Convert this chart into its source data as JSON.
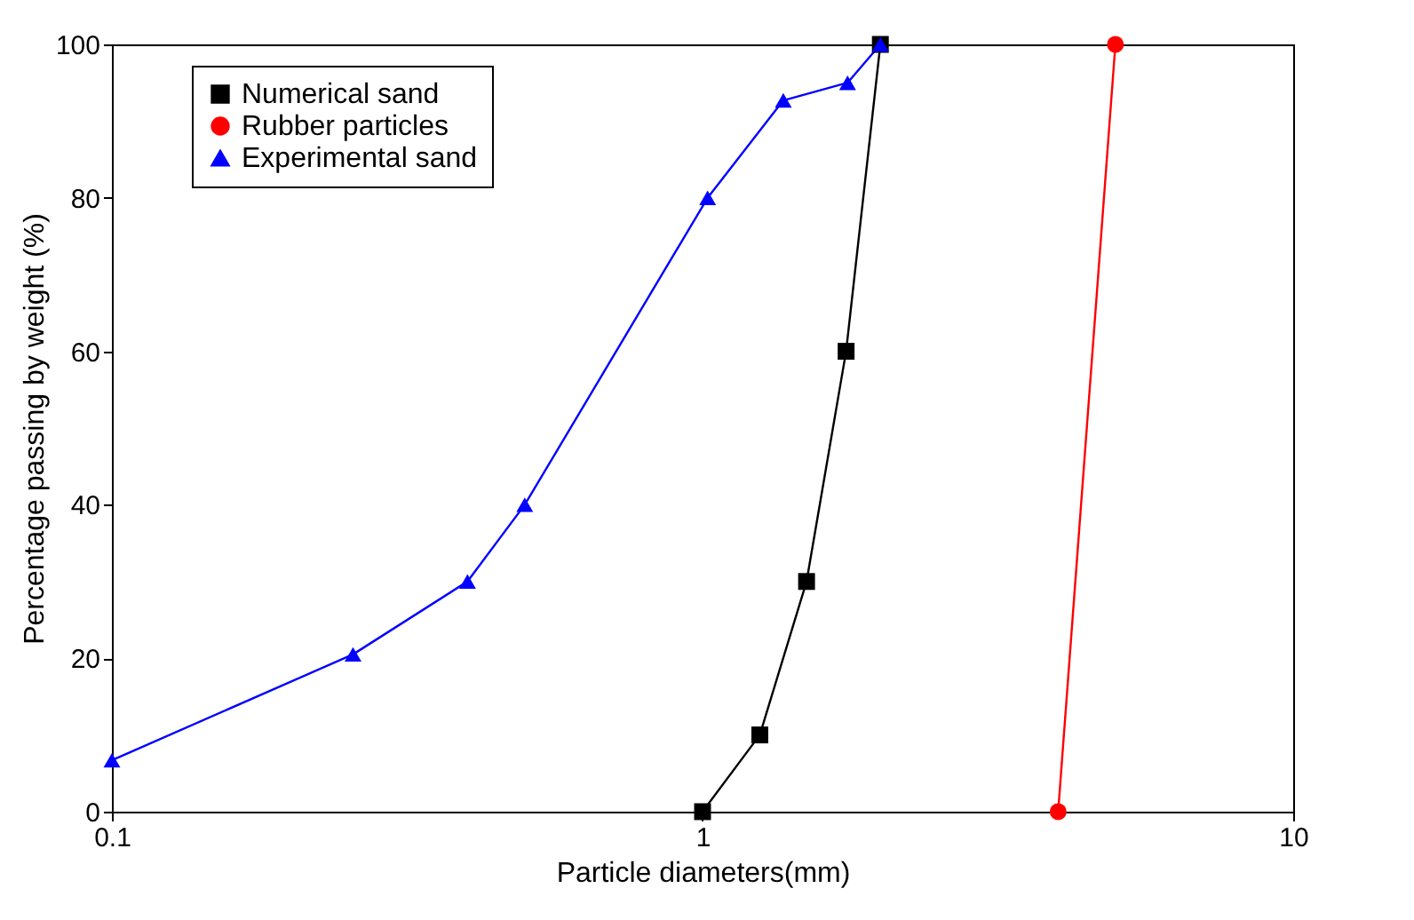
{
  "chart_data": {
    "type": "line",
    "xlabel": "Particle diameters(mm)",
    "ylabel": "Percentage passing by weight (%)",
    "log": "x",
    "xlim": [
      0.1,
      10
    ],
    "xticks": [
      0.1,
      1,
      10
    ],
    "ylim": [
      0,
      100
    ],
    "yticks": [
      0,
      20,
      40,
      60,
      80,
      100
    ],
    "grid": false,
    "legend": "top left",
    "series": [
      {
        "name": "Numerical sand",
        "color": "#000000",
        "marker": "square",
        "x": [
          1,
          1.25,
          1.5,
          1.75,
          2
        ],
        "values": [
          0,
          10,
          30,
          60,
          100
        ]
      },
      {
        "name": "Rubber particles",
        "color": "#ff0000",
        "marker": "circle",
        "x": [
          4,
          5
        ],
        "values": [
          0,
          100
        ]
      },
      {
        "name": "Experimental sand",
        "color": "#0000ff",
        "marker": "triangle",
        "x": [
          0.1,
          0.256,
          0.4,
          0.5,
          1.02,
          1.37,
          1.76,
          2
        ],
        "values": [
          6.7,
          20.5,
          30,
          40,
          80,
          92.7,
          95,
          100
        ]
      }
    ]
  }
}
